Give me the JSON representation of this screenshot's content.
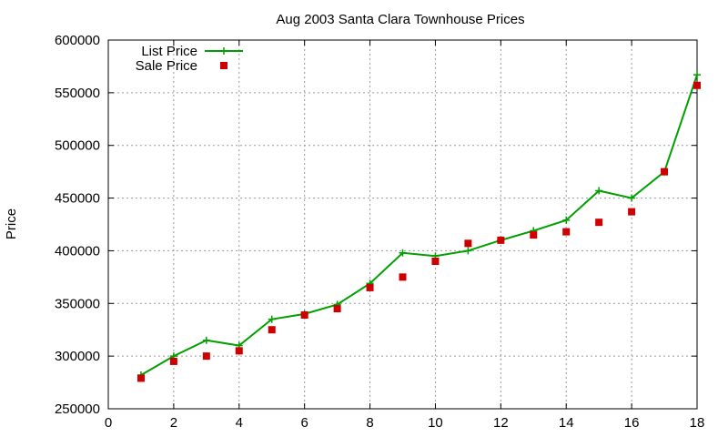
{
  "chart_data": {
    "type": "line",
    "title": "Aug 2003 Santa Clara Townhouse Prices",
    "xlabel": "",
    "ylabel": "Price",
    "xlim": [
      0,
      18
    ],
    "ylim": [
      250000,
      600000
    ],
    "xticks": [
      "0",
      "2",
      "4",
      "6",
      "8",
      "10",
      "12",
      "14",
      "16",
      "18"
    ],
    "yticks": [
      "250000",
      "300000",
      "350000",
      "400000",
      "450000",
      "500000",
      "550000",
      "600000"
    ],
    "grid": true,
    "legend_position": "top-left",
    "x": [
      1,
      2,
      3,
      4,
      5,
      6,
      7,
      8,
      9,
      10,
      11,
      12,
      13,
      14,
      15,
      16,
      17,
      18
    ],
    "series": [
      {
        "name": "List Price",
        "style": "lines+points",
        "marker": "plus",
        "color": "#00a000",
        "values": [
          282000,
          300000,
          315000,
          310000,
          335000,
          340000,
          349000,
          369000,
          398000,
          395000,
          400000,
          410000,
          419000,
          429000,
          457000,
          450000,
          475000,
          567000
        ]
      },
      {
        "name": "Sale Price",
        "style": "points",
        "marker": "square",
        "color": "#cc0000",
        "values": [
          279000,
          295000,
          300000,
          305000,
          325000,
          339000,
          345000,
          365000,
          375000,
          390000,
          407000,
          410000,
          415000,
          418000,
          427000,
          437000,
          475000,
          557000
        ]
      }
    ]
  }
}
